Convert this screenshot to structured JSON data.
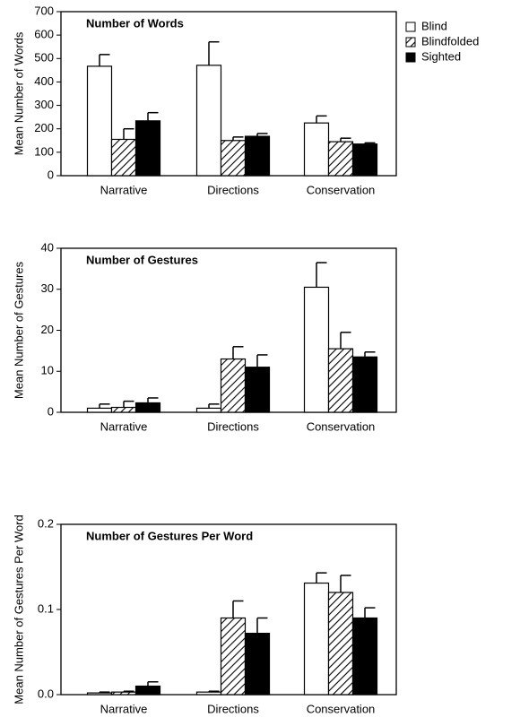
{
  "chart_data": [
    {
      "type": "bar",
      "title": "Number of Words",
      "y_label": "Mean Number of Words",
      "categories": [
        "Narrative",
        "Directions",
        "Conservation"
      ],
      "ylim": [
        0,
        700
      ],
      "yticks": [
        0,
        100,
        200,
        300,
        400,
        500,
        600,
        700
      ],
      "series": [
        {
          "name": "Blind",
          "color": "#ffffff",
          "values": [
            467,
            471,
            225
          ],
          "errors": [
            50,
            100,
            30
          ]
        },
        {
          "name": "Blindfolded",
          "color": "hatch",
          "values": [
            155,
            150,
            145
          ],
          "errors": [
            45,
            15,
            15
          ]
        },
        {
          "name": "Sighted",
          "color": "#000000",
          "values": [
            234,
            168,
            135
          ],
          "errors": [
            35,
            12,
            5
          ]
        }
      ]
    },
    {
      "type": "bar",
      "title": "Number of Gestures",
      "y_label": "Mean Number of Gestures",
      "categories": [
        "Narrative",
        "Directions",
        "Conservation"
      ],
      "ylim": [
        0,
        40
      ],
      "yticks": [
        0,
        10,
        20,
        30,
        40
      ],
      "series": [
        {
          "color": "#ffffff",
          "values": [
            1,
            1,
            30.5
          ],
          "errors": [
            1,
            1,
            6
          ]
        },
        {
          "color": "hatch",
          "values": [
            1.2,
            13,
            15.5
          ],
          "errors": [
            1.5,
            3,
            4
          ]
        },
        {
          "color": "#000000",
          "values": [
            2.3,
            11,
            13.5
          ],
          "errors": [
            1.2,
            3,
            1.2
          ]
        }
      ]
    },
    {
      "type": "bar",
      "title": "Number of Gestures Per Word",
      "y_label": "Mean Number of Gestures Per Word",
      "categories": [
        "Narrative",
        "Directions",
        "Conservation"
      ],
      "ylim": [
        0,
        0.2
      ],
      "yticks": [
        {
          "value": 0,
          "label": "0.0"
        },
        0.1,
        0.2
      ],
      "series": [
        {
          "color": "#ffffff",
          "values": [
            0.002,
            0.003,
            0.131
          ],
          "errors": [
            0.001,
            0.001,
            0.012
          ]
        },
        {
          "color": "hatch",
          "values": [
            0.003,
            0.09,
            0.12
          ],
          "errors": [
            0.001,
            0.02,
            0.02
          ]
        },
        {
          "color": "#000000",
          "values": [
            0.01,
            0.072,
            0.09
          ],
          "errors": [
            0.005,
            0.018,
            0.012
          ]
        }
      ]
    }
  ]
}
